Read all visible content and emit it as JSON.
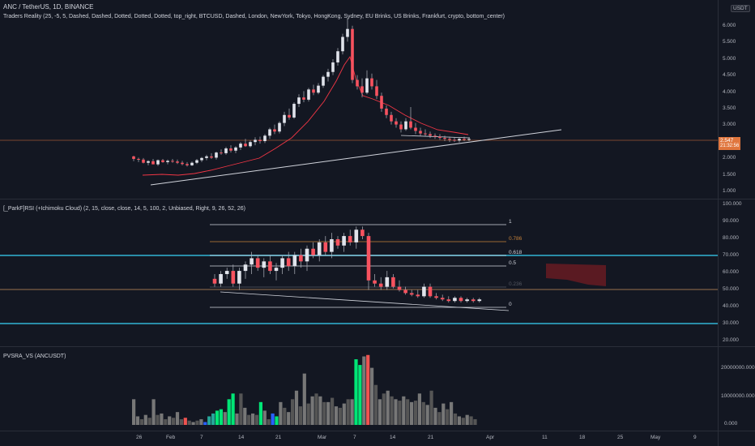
{
  "main_pane": {
    "title": "ANC / TetherUS, 1D, BINANCE",
    "indicator": "Traders Reality (25, -5, 5, Dashed, Dashed, Dotted, Dotted, Dotted, top_right, BTCUSD, Dashed, London, NewYork, Tokyo, HongKong, Sydney, EU Brinks, US Brinks, Frankfurt, crypto, bottom_center)",
    "currency": "USDT",
    "last_price": "2.547",
    "countdown": "21:32:56",
    "y_ticks": [
      "6.000",
      "5.500",
      "5.000",
      "4.500",
      "4.000",
      "3.500",
      "3.000",
      "2.500",
      "2.000",
      "1.500",
      "1.000"
    ]
  },
  "rsi_pane": {
    "title": "[_ParkF]RSI (+Ichimoku Cloud) (2, 15, close, close, 14, 5, 100, 2, Unbiased, Right, 9, 26, 52, 26)",
    "y_ticks": [
      "100.000",
      "90.000",
      "80.000",
      "70.000",
      "60.000",
      "50.000",
      "40.000",
      "30.000",
      "20.000"
    ],
    "fib_labels": [
      "1",
      "0.786",
      "0.618",
      "0.5",
      "0.236",
      "0"
    ]
  },
  "volume_pane": {
    "title": "PVSRA_VS (ANCUSDT)",
    "y_ticks": [
      "20000000.000",
      "10000000.000",
      "0.000"
    ]
  },
  "x_axis": [
    "26",
    "Feb",
    "7",
    "14",
    "21",
    "Mar",
    "7",
    "14",
    "21",
    "Apr",
    "11",
    "18",
    "25",
    "May",
    "9"
  ],
  "chart_data": [
    {
      "type": "candlestick",
      "pane": "price",
      "ylim": [
        0.8,
        6.4
      ],
      "ohlc": [
        [
          2.0,
          2.02,
          1.85,
          1.92
        ],
        [
          1.92,
          1.96,
          1.82,
          1.9
        ],
        [
          1.9,
          1.95,
          1.78,
          1.8
        ],
        [
          1.8,
          1.88,
          1.72,
          1.85
        ],
        [
          1.85,
          1.92,
          1.78,
          1.75
        ],
        [
          1.75,
          1.9,
          1.7,
          1.88
        ],
        [
          1.88,
          1.92,
          1.8,
          1.82
        ],
        [
          1.82,
          1.9,
          1.75,
          1.86
        ],
        [
          1.86,
          1.92,
          1.8,
          1.84
        ],
        [
          1.84,
          1.9,
          1.76,
          1.8
        ],
        [
          1.8,
          1.86,
          1.72,
          1.76
        ],
        [
          1.76,
          1.82,
          1.68,
          1.72
        ],
        [
          1.72,
          1.84,
          1.7,
          1.8
        ],
        [
          1.8,
          1.92,
          1.76,
          1.88
        ],
        [
          1.88,
          1.98,
          1.82,
          1.95
        ],
        [
          1.95,
          2.05,
          1.88,
          2.0
        ],
        [
          2.0,
          2.1,
          1.92,
          1.96
        ],
        [
          1.96,
          2.15,
          1.9,
          2.12
        ],
        [
          2.12,
          2.22,
          2.05,
          2.1
        ],
        [
          2.1,
          2.3,
          2.05,
          2.25
        ],
        [
          2.25,
          2.35,
          2.12,
          2.18
        ],
        [
          2.18,
          2.32,
          2.1,
          2.28
        ],
        [
          2.28,
          2.45,
          2.2,
          2.4
        ],
        [
          2.4,
          2.55,
          2.3,
          2.32
        ],
        [
          2.32,
          2.5,
          2.28,
          2.45
        ],
        [
          2.45,
          2.6,
          2.35,
          2.52
        ],
        [
          2.52,
          2.62,
          2.4,
          2.48
        ],
        [
          2.48,
          2.7,
          2.42,
          2.65
        ],
        [
          2.65,
          2.9,
          2.55,
          2.85
        ],
        [
          2.85,
          3.0,
          2.7,
          2.78
        ],
        [
          2.78,
          3.1,
          2.72,
          3.05
        ],
        [
          3.05,
          3.4,
          2.95,
          3.3
        ],
        [
          3.3,
          3.5,
          3.15,
          3.22
        ],
        [
          3.22,
          3.7,
          3.18,
          3.65
        ],
        [
          3.65,
          3.95,
          3.55,
          3.85
        ],
        [
          3.85,
          4.05,
          3.7,
          3.78
        ],
        [
          3.78,
          4.15,
          3.72,
          4.1
        ],
        [
          4.1,
          4.25,
          3.92,
          4.0
        ],
        [
          4.0,
          4.3,
          3.95,
          4.22
        ],
        [
          4.22,
          4.55,
          4.15,
          4.5
        ],
        [
          4.5,
          4.75,
          4.35,
          4.65
        ],
        [
          4.65,
          5.05,
          4.55,
          4.95
        ],
        [
          4.95,
          5.4,
          4.85,
          5.3
        ],
        [
          5.3,
          5.85,
          5.2,
          5.75
        ],
        [
          5.75,
          6.35,
          5.6,
          6.0
        ],
        [
          6.0,
          6.1,
          4.3,
          4.4
        ],
        [
          4.4,
          4.55,
          4.1,
          4.2
        ],
        [
          4.2,
          4.45,
          3.85,
          4.0
        ],
        [
          4.0,
          4.7,
          3.95,
          4.45
        ],
        [
          4.45,
          4.6,
          4.1,
          4.2
        ],
        [
          4.2,
          4.4,
          3.8,
          3.9
        ],
        [
          3.9,
          4.0,
          3.4,
          3.5
        ],
        [
          3.5,
          3.6,
          3.2,
          3.3
        ],
        [
          3.3,
          3.4,
          3.0,
          3.1
        ],
        [
          3.1,
          3.2,
          2.9,
          3.0
        ],
        [
          3.0,
          3.1,
          2.75,
          2.85
        ],
        [
          2.85,
          3.2,
          2.8,
          3.1
        ],
        [
          3.1,
          3.55,
          2.85,
          2.9
        ],
        [
          2.9,
          3.05,
          2.7,
          2.8
        ],
        [
          2.8,
          2.9,
          2.65,
          2.72
        ],
        [
          2.72,
          2.85,
          2.62,
          2.7
        ],
        [
          2.7,
          2.78,
          2.58,
          2.65
        ],
        [
          2.65,
          2.72,
          2.55,
          2.62
        ],
        [
          2.62,
          2.7,
          2.52,
          2.58
        ],
        [
          2.58,
          2.65,
          2.48,
          2.55
        ],
        [
          2.55,
          2.62,
          2.45,
          2.52
        ],
        [
          2.52,
          2.6,
          2.45,
          2.5
        ],
        [
          2.5,
          2.58,
          2.44,
          2.55
        ],
        [
          2.55,
          2.62,
          2.48,
          2.52
        ],
        [
          2.52,
          2.6,
          2.48,
          2.547
        ]
      ]
    },
    {
      "type": "candlestick",
      "pane": "rsi",
      "ylim": [
        15,
        102
      ],
      "ohlc": [
        [
          55,
          58,
          50,
          52
        ],
        [
          52,
          60,
          50,
          58
        ],
        [
          58,
          62,
          55,
          60
        ],
        [
          60,
          64,
          50,
          52
        ],
        [
          52,
          62,
          48,
          60
        ],
        [
          60,
          66,
          55,
          64
        ],
        [
          64,
          72,
          58,
          68
        ],
        [
          68,
          70,
          60,
          62
        ],
        [
          62,
          68,
          56,
          66
        ],
        [
          66,
          70,
          58,
          60
        ],
        [
          60,
          65,
          54,
          62
        ],
        [
          62,
          70,
          58,
          68
        ],
        [
          68,
          72,
          60,
          63
        ],
        [
          63,
          72,
          58,
          70
        ],
        [
          70,
          74,
          62,
          66
        ],
        [
          66,
          76,
          60,
          74
        ],
        [
          74,
          78,
          68,
          70
        ],
        [
          70,
          80,
          66,
          78
        ],
        [
          78,
          82,
          70,
          72
        ],
        [
          72,
          84,
          68,
          80
        ],
        [
          80,
          82,
          74,
          76
        ],
        [
          76,
          84,
          72,
          82
        ],
        [
          82,
          86,
          76,
          78
        ],
        [
          78,
          88,
          74,
          86
        ],
        [
          86,
          88,
          80,
          82
        ],
        [
          82,
          84,
          48,
          54
        ],
        [
          54,
          58,
          50,
          52
        ],
        [
          52,
          56,
          48,
          50
        ],
        [
          50,
          60,
          48,
          56
        ],
        [
          56,
          58,
          49,
          50
        ],
        [
          50,
          54,
          47,
          48
        ],
        [
          48,
          50,
          45,
          46
        ],
        [
          46,
          48,
          44,
          45
        ],
        [
          45,
          48,
          43,
          44
        ],
        [
          44,
          52,
          43,
          50
        ],
        [
          50,
          52,
          43,
          44
        ],
        [
          44,
          46,
          42,
          43
        ],
        [
          43,
          45,
          41,
          42
        ],
        [
          42,
          44,
          40,
          41
        ],
        [
          41,
          44,
          40,
          43
        ],
        [
          43,
          44,
          40,
          41
        ],
        [
          41,
          43,
          40,
          42
        ],
        [
          42,
          43,
          40,
          41
        ],
        [
          41,
          43,
          40,
          42
        ]
      ]
    },
    {
      "type": "bar",
      "pane": "volume",
      "ylim": [
        0,
        25000000
      ],
      "values": [
        9000000,
        3000000,
        2000000,
        3500000,
        2500000,
        9000000,
        3500000,
        4000000,
        2000000,
        3000000,
        2500000,
        4500000,
        2000000,
        2500000,
        1500000,
        1000000,
        1500000,
        2000000,
        1000000,
        3000000,
        4000000,
        5000000,
        5500000,
        4500000,
        9000000,
        11000000,
        4000000,
        11000000,
        6000000,
        3500000,
        4000000,
        3500000,
        8000000,
        5000000,
        2000000,
        4000000,
        3000000,
        8000000,
        6000000,
        4500000,
        9000000,
        12000000,
        6500000,
        18000000,
        7500000,
        10000000,
        11000000,
        10000000,
        8000000,
        8000000,
        9500000,
        6500000,
        6000000,
        7500000,
        9000000,
        9000000,
        23000000,
        21000000,
        24000000,
        24500000,
        20000000,
        14000000,
        9000000,
        11000000,
        12000000,
        10000000,
        9000000,
        8500000,
        10000000,
        9000000,
        8000000,
        8500000,
        11000000,
        8000000,
        7000000,
        12000000,
        6000000,
        4500000,
        7500000,
        5500000,
        8000000,
        4000000,
        3000000,
        2500000,
        3500000,
        3000000,
        2000000
      ],
      "colors": [
        "#777777",
        "#777777",
        "#555555",
        "#777777",
        "#555555",
        "#777777",
        "#555555",
        "#777777",
        "#555555",
        "#777777",
        "#555555",
        "#777777",
        "#555555",
        "#ef5350",
        "#555555",
        "#777777",
        "#555555",
        "#777777",
        "#2962ff",
        "#26a69a",
        "#26a69a",
        "#00e676",
        "#00e676",
        "#777777",
        "#00e676",
        "#00e676",
        "#777777",
        "#555555",
        "#777777",
        "#555555",
        "#777777",
        "#555555",
        "#00e676",
        "#777777",
        "#555555",
        "#2962ff",
        "#00e676",
        "#777777",
        "#555555",
        "#777777",
        "#555555",
        "#777777",
        "#555555",
        "#777777",
        "#555555",
        "#777777",
        "#555555",
        "#777777",
        "#555555",
        "#777777",
        "#555555",
        "#777777",
        "#555555",
        "#777777",
        "#555555",
        "#777777",
        "#00e676",
        "#00e676",
        "#777777",
        "#ef5350",
        "#777777",
        "#555555",
        "#777777",
        "#555555",
        "#777777",
        "#555555",
        "#777777",
        "#555555",
        "#777777",
        "#555555",
        "#777777",
        "#555555",
        "#777777",
        "#555555",
        "#777777",
        "#555555",
        "#777777",
        "#555555",
        "#777777",
        "#555555",
        "#777777",
        "#555555",
        "#777777",
        "#555555",
        "#777777",
        "#555555",
        "#555555"
      ]
    }
  ]
}
